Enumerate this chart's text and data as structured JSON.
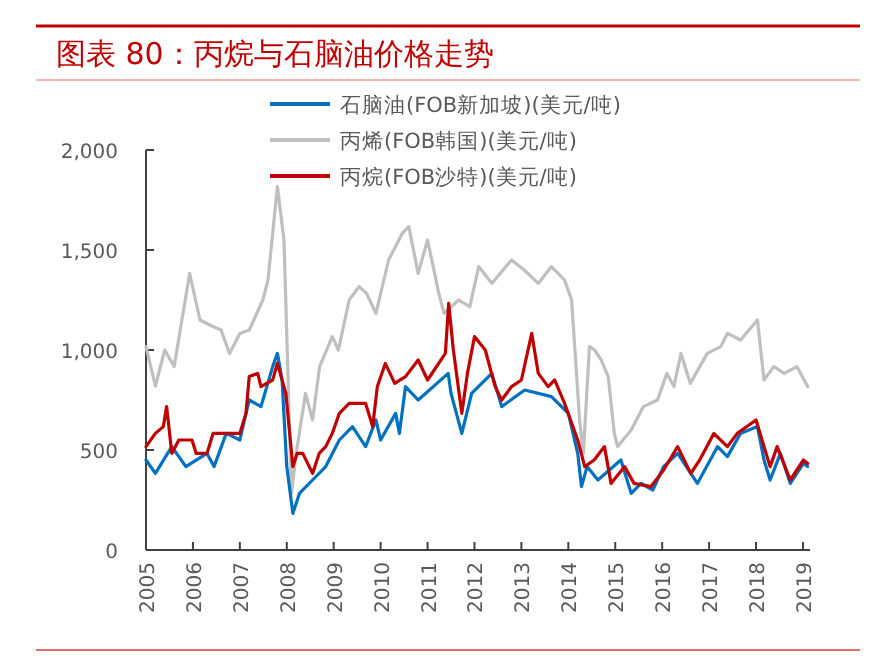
{
  "chart_data": {
    "type": "line",
    "title": "图表 80：丙烷与石脑油价格走势",
    "xlim": [
      2005,
      2019.15
    ],
    "xticks": [
      2005,
      2006,
      2007,
      2008,
      2009,
      2010,
      2011,
      2012,
      2013,
      2014,
      2015,
      2016,
      2017,
      2018,
      2019
    ],
    "ylim": [
      0,
      2000
    ],
    "yticks": [
      0,
      500,
      {
        "value": 1000,
        "label": "1,000"
      },
      {
        "value": 1500,
        "label": "1,500"
      },
      {
        "value": 2000,
        "label": "2,000"
      }
    ],
    "legend": "top",
    "line_style": "solid",
    "marker": "none",
    "series": [
      {
        "name": "石脑油(FOB新加坡)(美元/吨)",
        "color": "#0070c0",
        "x": [
          2005.0,
          2005.2,
          2005.55,
          2005.85,
          2006.3,
          2006.45,
          2006.71,
          2007.0,
          2007.2,
          2007.45,
          2007.7,
          2007.8,
          2007.9,
          2008.0,
          2008.13,
          2008.27,
          2008.55,
          2008.83,
          2009.12,
          2009.4,
          2009.68,
          2009.9,
          2010.0,
          2010.32,
          2010.4,
          2010.53,
          2010.8,
          2011.44,
          2011.5,
          2011.73,
          2011.94,
          2012.37,
          2012.58,
          2013.07,
          2013.64,
          2014.0,
          2014.2,
          2014.28,
          2014.4,
          2014.63,
          2015.12,
          2015.34,
          2015.55,
          2015.8,
          2016.03,
          2016.33,
          2016.75,
          2017.18,
          2017.39,
          2017.67,
          2018.03,
          2018.17,
          2018.3,
          2018.52,
          2018.73,
          2019.01,
          2019.1
        ],
        "values": [
          450,
          383,
          517,
          417,
          483,
          417,
          583,
          550,
          750,
          717,
          917,
          983,
          850,
          417,
          183,
          283,
          350,
          417,
          550,
          617,
          517,
          650,
          550,
          683,
          583,
          817,
          750,
          883,
          783,
          583,
          783,
          883,
          717,
          800,
          767,
          683,
          483,
          317,
          417,
          350,
          450,
          283,
          333,
          300,
          417,
          483,
          333,
          517,
          467,
          583,
          617,
          450,
          350,
          483,
          333,
          433,
          417
        ]
      },
      {
        "name": "丙烯(FOB韩国)(美元/吨)",
        "color": "#bfbfbf",
        "x": [
          2005.0,
          2005.2,
          2005.4,
          2005.6,
          2005.93,
          2006.15,
          2006.43,
          2006.6,
          2006.78,
          2007.0,
          2007.2,
          2007.49,
          2007.6,
          2007.8,
          2007.94,
          2008.1,
          2008.2,
          2008.4,
          2008.55,
          2008.7,
          2008.97,
          2009.1,
          2009.33,
          2009.54,
          2009.7,
          2009.9,
          2010.17,
          2010.46,
          2010.6,
          2010.8,
          2011.0,
          2011.24,
          2011.35,
          2011.66,
          2011.9,
          2012.09,
          2012.37,
          2012.79,
          2013.06,
          2013.36,
          2013.64,
          2013.92,
          2014.07,
          2014.24,
          2014.32,
          2014.45,
          2014.56,
          2014.7,
          2014.85,
          2014.98,
          2015.05,
          2015.34,
          2015.6,
          2015.9,
          2016.1,
          2016.25,
          2016.4,
          2016.6,
          2016.96,
          2017.25,
          2017.39,
          2017.67,
          2018.03,
          2018.17,
          2018.38,
          2018.6,
          2018.87,
          2019.1
        ],
        "values": [
          1017,
          820,
          1000,
          917,
          1383,
          1150,
          1117,
          1100,
          983,
          1083,
          1100,
          1250,
          1350,
          1817,
          1550,
          283,
          483,
          783,
          650,
          917,
          1067,
          1000,
          1250,
          1317,
          1283,
          1183,
          1450,
          1583,
          1617,
          1383,
          1550,
          1283,
          1183,
          1250,
          1217,
          1417,
          1333,
          1450,
          1400,
          1333,
          1417,
          1350,
          1250,
          650,
          483,
          1017,
          1000,
          950,
          867,
          583,
          517,
          600,
          717,
          750,
          883,
          817,
          983,
          833,
          983,
          1017,
          1083,
          1050,
          1150,
          850,
          917,
          883,
          917,
          817
        ]
      },
      {
        "name": "丙烷(FOB沙特)(美元/吨)",
        "color": "#c00000",
        "x": [
          2005.0,
          2005.2,
          2005.37,
          2005.44,
          2005.55,
          2005.7,
          2005.98,
          2006.07,
          2006.3,
          2006.43,
          2007.0,
          2007.13,
          2007.2,
          2007.38,
          2007.45,
          2007.7,
          2007.8,
          2007.98,
          2008.13,
          2008.22,
          2008.34,
          2008.55,
          2008.69,
          2008.83,
          2008.97,
          2009.12,
          2009.33,
          2009.68,
          2009.83,
          2009.93,
          2010.1,
          2010.3,
          2010.53,
          2010.8,
          2011.0,
          2011.38,
          2011.45,
          2011.55,
          2011.73,
          2011.85,
          2012.0,
          2012.23,
          2012.44,
          2012.58,
          2012.79,
          2013.0,
          2013.22,
          2013.36,
          2013.57,
          2013.71,
          2013.92,
          2014.2,
          2014.35,
          2014.55,
          2014.77,
          2014.91,
          2015.2,
          2015.4,
          2015.76,
          2016.03,
          2016.33,
          2016.61,
          2016.8,
          2017.1,
          2017.39,
          2017.6,
          2018.0,
          2018.17,
          2018.3,
          2018.45,
          2018.73,
          2019.01,
          2019.1
        ],
        "values": [
          517,
          583,
          617,
          717,
          483,
          550,
          550,
          483,
          483,
          583,
          583,
          683,
          867,
          883,
          817,
          850,
          933,
          783,
          417,
          483,
          483,
          383,
          483,
          517,
          583,
          683,
          733,
          733,
          617,
          817,
          933,
          833,
          867,
          950,
          850,
          983,
          1233,
          1000,
          683,
          883,
          1067,
          1000,
          817,
          750,
          817,
          850,
          1083,
          883,
          817,
          850,
          733,
          550,
          417,
          450,
          517,
          333,
          417,
          333,
          317,
          400,
          517,
          383,
          450,
          583,
          517,
          583,
          650,
          517,
          417,
          517,
          350,
          450,
          433
        ]
      }
    ]
  }
}
